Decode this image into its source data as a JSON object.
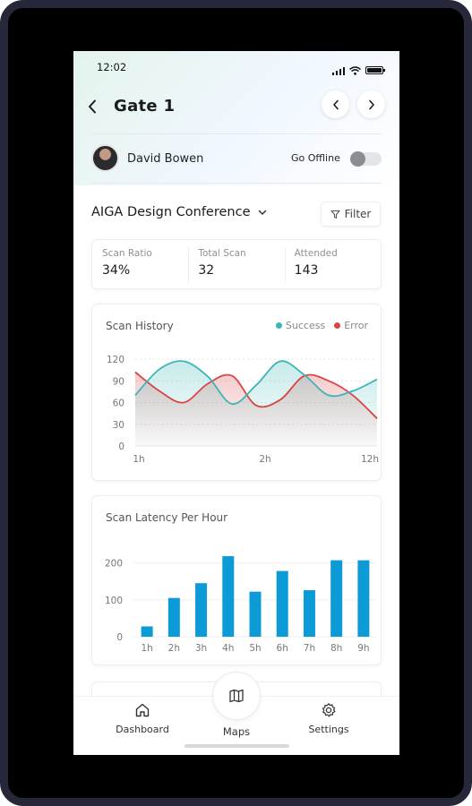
{
  "status_bar": {
    "time": "12:02"
  },
  "header": {
    "title": "Gate 1"
  },
  "user": {
    "name": "David Bowen",
    "offline_label": "Go Offline",
    "offline": false
  },
  "event": {
    "name": "AIGA Design Conference",
    "filter_label": "Filter"
  },
  "stats": [
    {
      "label": "Scan Ratio",
      "value": "34%"
    },
    {
      "label": "Total Scan",
      "value": "32"
    },
    {
      "label": "Attended",
      "value": "143"
    }
  ],
  "scan_history": {
    "title": "Scan History",
    "legend": [
      {
        "name": "Success",
        "color": "#3bb5b5"
      },
      {
        "name": "Error",
        "color": "#d94545"
      }
    ]
  },
  "scan_latency": {
    "title": "Scan Latency Per Hour"
  },
  "chart_data": [
    {
      "type": "line",
      "title": "Scan History",
      "x_ticks": [
        "1h",
        "2h",
        "12h"
      ],
      "y_ticks": [
        0,
        30,
        60,
        90,
        120
      ],
      "ylim": [
        0,
        120
      ],
      "legend": "top-right",
      "series": [
        {
          "name": "Success",
          "color": "#3bb5b5",
          "values": [
            70,
            106,
            117,
            96,
            58,
            84,
            117,
            98,
            70,
            76,
            92
          ]
        },
        {
          "name": "Error",
          "color": "#d94545",
          "values": [
            102,
            76,
            60,
            86,
            97,
            56,
            64,
            97,
            90,
            70,
            38
          ]
        }
      ]
    },
    {
      "type": "bar",
      "title": "Scan Latency Per Hour",
      "categories": [
        "1h",
        "2h",
        "3h",
        "4h",
        "5h",
        "6h",
        "7h",
        "8h",
        "9h"
      ],
      "values": [
        28,
        105,
        145,
        218,
        122,
        178,
        126,
        207,
        207
      ],
      "y_ticks": [
        0,
        100,
        200
      ],
      "ylim": [
        0,
        240
      ],
      "color": "#0d9bd8"
    }
  ],
  "bottom_nav": {
    "dashboard": "Dashboard",
    "maps": "Maps",
    "settings": "Settings"
  }
}
